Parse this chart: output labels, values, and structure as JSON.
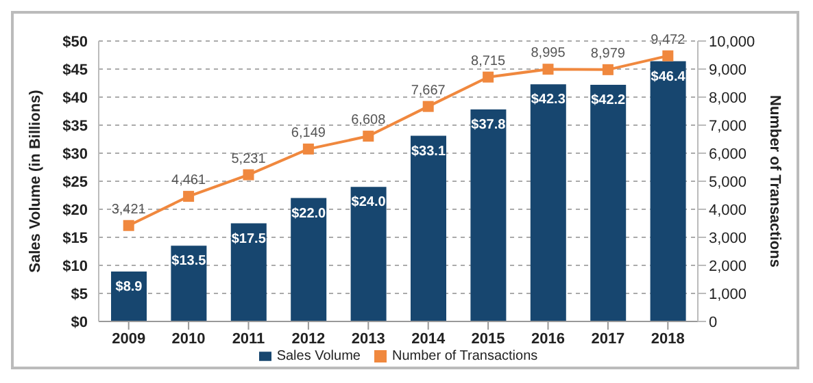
{
  "chart_data": {
    "type": "bar",
    "categories": [
      "2009",
      "2010",
      "2011",
      "2012",
      "2013",
      "2014",
      "2015",
      "2016",
      "2017",
      "2018"
    ],
    "series": [
      {
        "name": "Sales Volume",
        "color": "#17466f",
        "values": [
          8.9,
          13.5,
          17.5,
          22.0,
          24.0,
          33.1,
          37.8,
          42.3,
          42.2,
          46.4
        ],
        "value_labels": [
          "$8.9",
          "$13.5",
          "$17.5",
          "$22.0",
          "$24.0",
          "$33.1",
          "$37.8",
          "$42.3",
          "$42.2",
          "$46.4"
        ]
      },
      {
        "name": "Number of Transactions",
        "type": "line",
        "axis": "y2",
        "color": "#f0883e",
        "marker": "square",
        "values": [
          3421,
          4461,
          5231,
          6149,
          6608,
          7667,
          8715,
          8995,
          8979,
          9472
        ],
        "value_labels": [
          "3,421",
          "4,461",
          "5,231",
          "6,149",
          "6,608",
          "7,667",
          "8,715",
          "8,995",
          "8,979",
          "9,472"
        ]
      }
    ],
    "ylabel": "Sales Volume (in Billions)",
    "y2label": "Number of Transactions",
    "ylim": [
      0,
      50
    ],
    "yticks": [
      {
        "value": 0,
        "label": "$0"
      },
      {
        "value": 5,
        "label": "$5"
      },
      {
        "value": 10,
        "label": "$10"
      },
      {
        "value": 15,
        "label": "$15"
      },
      {
        "value": 20,
        "label": "$20"
      },
      {
        "value": 25,
        "label": "$25"
      },
      {
        "value": 30,
        "label": "$30"
      },
      {
        "value": 35,
        "label": "$35"
      },
      {
        "value": 40,
        "label": "$40"
      },
      {
        "value": 45,
        "label": "$45"
      },
      {
        "value": 50,
        "label": "$50"
      }
    ],
    "y2lim": [
      0,
      10000
    ],
    "y2ticks": [
      0,
      {
        "value": 1000,
        "label": "1,000"
      },
      {
        "value": 2000,
        "label": "2,000"
      },
      {
        "value": 3000,
        "label": "3,000"
      },
      {
        "value": 4000,
        "label": "4,000"
      },
      {
        "value": 5000,
        "label": "5,000"
      },
      {
        "value": 6000,
        "label": "6,000"
      },
      {
        "value": 7000,
        "label": "7,000"
      },
      {
        "value": 8000,
        "label": "8,000"
      },
      {
        "value": 9000,
        "label": "9,000"
      },
      {
        "value": 10000,
        "label": "10,000"
      }
    ],
    "grid": "y",
    "legend": "bottom"
  }
}
